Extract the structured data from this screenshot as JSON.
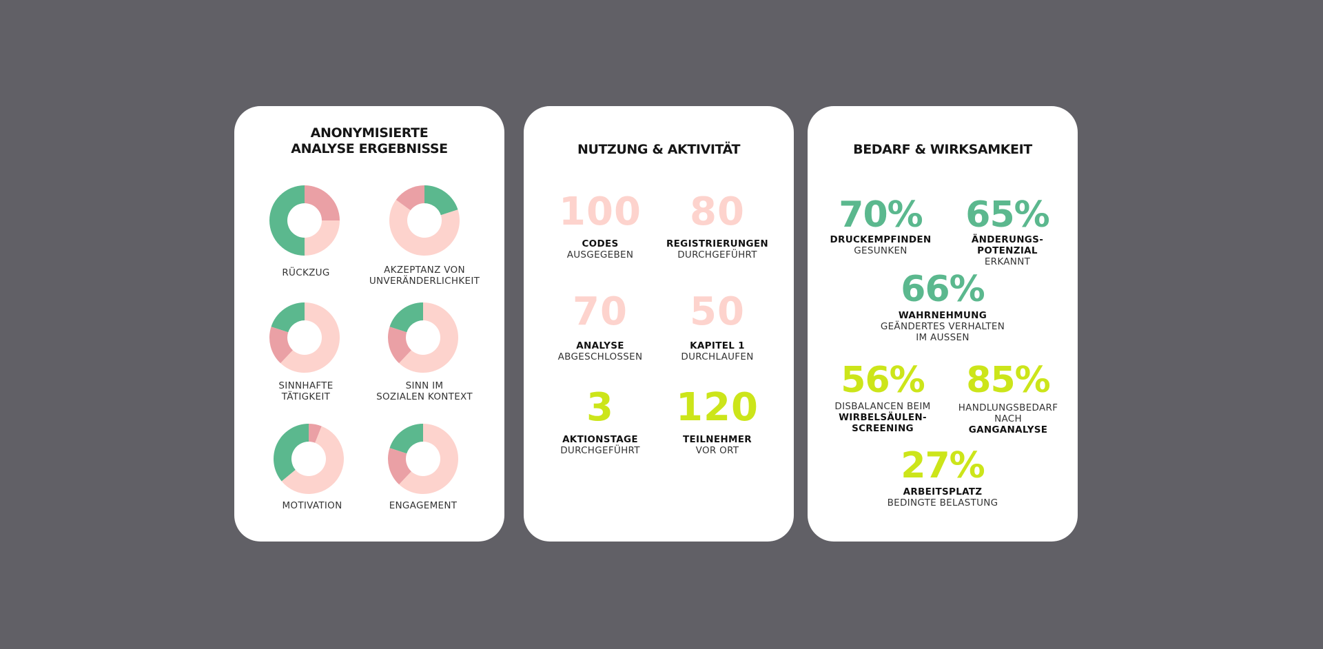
{
  "colors": {
    "background": "#616066",
    "card": "#ffffff",
    "donut_green": "#5bb88e",
    "donut_dark_pink": "#eaa0a5",
    "donut_light_pink": "#fdd3cd",
    "number_pink": "#fdd3cd",
    "number_lime": "#cce51a",
    "percent_green": "#5bb88e",
    "percent_lime": "#cce51a"
  },
  "card1": {
    "title_line1": "ANONYMISIERTE",
    "title_line2": "ANALYSE ERGEBNISSE",
    "donuts": [
      {
        "label_line1": "RÜCKZUG",
        "label_line2": "",
        "segments": {
          "green": 0.5,
          "dark_pink": 0.25,
          "light_pink": 0.25
        }
      },
      {
        "label_line1": "AKZEPTANZ VON",
        "label_line2": "UNVERÄNDERLICHKEIT",
        "segments": {
          "green": 0.2,
          "light_pink": 0.65,
          "dark_pink": 0.15
        }
      },
      {
        "label_line1": "SINNHAFTE",
        "label_line2": "TÄTIGKEIT",
        "segments": {
          "green": 0.2,
          "light_pink": 0.62,
          "dark_pink": 0.18
        }
      },
      {
        "label_line1": "SINN IM",
        "label_line2": "SOZIALEN KONTEXT",
        "segments": {
          "green": 0.2,
          "light_pink": 0.62,
          "dark_pink": 0.18
        }
      },
      {
        "label_line1": "MOTIVATION",
        "label_line2": "",
        "segments": {
          "green": 0.36,
          "light_pink": 0.58,
          "dark_pink": 0.06
        }
      },
      {
        "label_line1": "ENGAGEMENT",
        "label_line2": "",
        "segments": {
          "green": 0.2,
          "light_pink": 0.62,
          "dark_pink": 0.18
        }
      }
    ]
  },
  "card2": {
    "title": "NUTZUNG & AKTIVITÄT",
    "stats": [
      {
        "value": "100",
        "bold": "CODES",
        "text": "AUSGEGEBEN",
        "color": "pink"
      },
      {
        "value": "80",
        "bold": "REGISTRIERUNGEN",
        "text": "DURCHGEFÜHRT",
        "color": "pink"
      },
      {
        "value": "70",
        "bold": "ANALYSE",
        "text": "ABGESCHLOSSEN",
        "color": "pink"
      },
      {
        "value": "50",
        "bold": "KAPITEL 1",
        "text": "DURCHLAUFEN",
        "color": "pink"
      },
      {
        "value": "3",
        "bold": "AKTIONSTAGE",
        "text": "DURCHGEFÜHRT",
        "color": "lime"
      },
      {
        "value": "120",
        "bold": "TEILNEHMER",
        "text": "VOR ORT",
        "color": "lime"
      }
    ]
  },
  "card3": {
    "title": "BEDARF & WIRKSAMKEIT",
    "items": {
      "druck": {
        "value": "70%",
        "bold": "DRUCKEMPFINDEN",
        "text": "GESUNKEN"
      },
      "aenderung": {
        "value": "65%",
        "bold1": "ÄNDERUNGS-",
        "bold2": "POTENZIAL",
        "text": "ERKANNT"
      },
      "wahrnehmung": {
        "value": "66%",
        "bold": "WAHRNEHMUNG",
        "text1": "GEÄNDERTES VERHALTEN",
        "text2": "IM AUSSEN"
      },
      "disbalancen": {
        "value": "56%",
        "text": "DISBALANCEN BEIM",
        "bold1": "WIRBELSÄULEN-",
        "bold2": "SCREENING"
      },
      "handlung": {
        "value": "85%",
        "text1": "HANDLUNGSBEDARF",
        "text2": "NACH",
        "bold": "GANGANALYSE"
      },
      "arbeitsplatz": {
        "value": "27%",
        "bold": "ARBEITSPLATZ",
        "text": "BEDINGTE BELASTUNG"
      }
    }
  }
}
